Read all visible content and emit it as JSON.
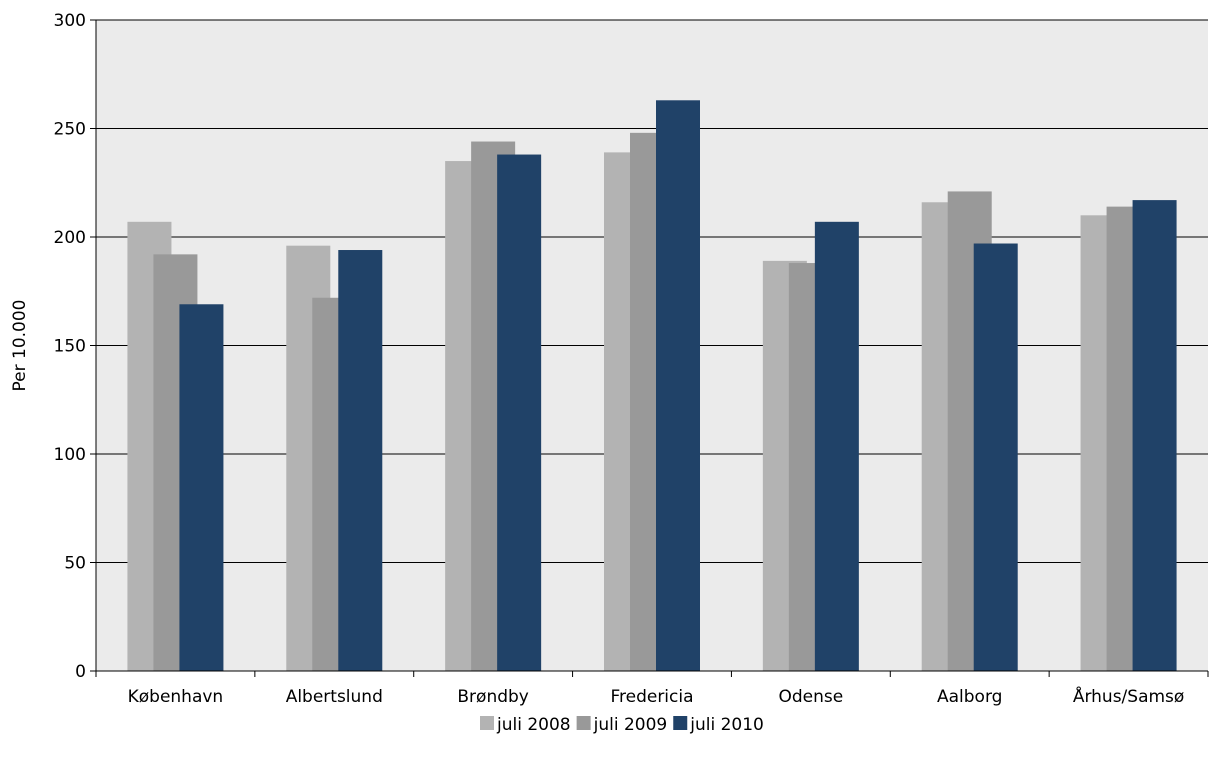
{
  "chart_data": {
    "type": "bar",
    "title": "",
    "xlabel": "",
    "ylabel": "Per 10.000",
    "ylim": [
      0,
      300
    ],
    "yticks": [
      0,
      50,
      100,
      150,
      200,
      250,
      300
    ],
    "grid": true,
    "legend_position": "bottom",
    "categories": [
      "København",
      "Albertslund",
      "Brøndby",
      "Fredericia",
      "Odense",
      "Aalborg",
      "Århus/Samsø"
    ],
    "series": [
      {
        "name": "juli 2008",
        "color": "#b3b3b3",
        "values": [
          207,
          196,
          235,
          239,
          189,
          216,
          210
        ]
      },
      {
        "name": "juli 2009",
        "color": "#999999",
        "values": [
          192,
          172,
          244,
          248,
          188,
          221,
          214
        ]
      },
      {
        "name": "juli 2010",
        "color": "#204268",
        "values": [
          169,
          194,
          238,
          263,
          207,
          197,
          217
        ]
      }
    ],
    "plot_background": "#ebebeb"
  }
}
